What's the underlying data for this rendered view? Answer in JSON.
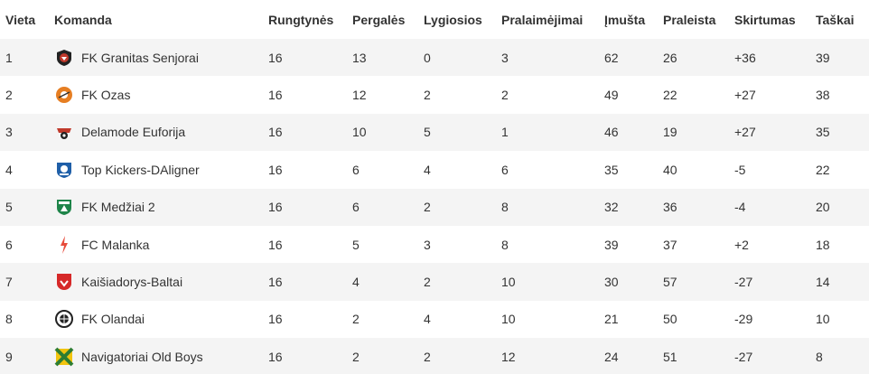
{
  "headers": [
    "Vieta",
    "Komanda",
    "Rungtynės",
    "Pergalės",
    "Lygiosios",
    "Pralaimėjimai",
    "Įmušta",
    "Praleista",
    "Skirtumas",
    "Taškai"
  ],
  "rows": [
    {
      "place": "1",
      "team": "FK Granitas Senjorai",
      "played": "16",
      "won": "13",
      "drawn": "0",
      "lost": "3",
      "scored": "62",
      "conceded": "26",
      "diff": "+36",
      "points": "39",
      "logo_icon": "granitas-logo-icon",
      "logo_color": "#c0392b"
    },
    {
      "place": "2",
      "team": "FK Ozas",
      "played": "16",
      "won": "12",
      "drawn": "2",
      "lost": "2",
      "scored": "49",
      "conceded": "22",
      "diff": "+27",
      "points": "38",
      "logo_icon": "ozas-logo-icon",
      "logo_color": "#e67e22"
    },
    {
      "place": "3",
      "team": "Delamode Euforija",
      "played": "16",
      "won": "10",
      "drawn": "5",
      "lost": "1",
      "scored": "46",
      "conceded": "19",
      "diff": "+27",
      "points": "35",
      "logo_icon": "euforija-logo-icon",
      "logo_color": "#c0392b"
    },
    {
      "place": "4",
      "team": "Top Kickers-DAligner",
      "played": "16",
      "won": "6",
      "drawn": "4",
      "lost": "6",
      "scored": "35",
      "conceded": "40",
      "diff": "-5",
      "points": "22",
      "logo_icon": "top-kickers-logo-icon",
      "logo_color": "#1f5fa8"
    },
    {
      "place": "5",
      "team": "FK Medžiai 2",
      "played": "16",
      "won": "6",
      "drawn": "2",
      "lost": "8",
      "scored": "32",
      "conceded": "36",
      "diff": "-4",
      "points": "20",
      "logo_icon": "medziai-logo-icon",
      "logo_color": "#1e8449"
    },
    {
      "place": "6",
      "team": "FC Malanka",
      "played": "16",
      "won": "5",
      "drawn": "3",
      "lost": "8",
      "scored": "39",
      "conceded": "37",
      "diff": "+2",
      "points": "18",
      "logo_icon": "malanka-logo-icon",
      "logo_color": "#e74c3c"
    },
    {
      "place": "7",
      "team": "Kaišiadorys-Baltai",
      "played": "16",
      "won": "4",
      "drawn": "2",
      "lost": "10",
      "scored": "30",
      "conceded": "57",
      "diff": "-27",
      "points": "14",
      "logo_icon": "kaisiadorys-logo-icon",
      "logo_color": "#d62828"
    },
    {
      "place": "8",
      "team": "FK Olandai",
      "played": "16",
      "won": "2",
      "drawn": "4",
      "lost": "10",
      "scored": "21",
      "conceded": "50",
      "diff": "-29",
      "points": "10",
      "logo_icon": "olandai-logo-icon",
      "logo_color": "#222222"
    },
    {
      "place": "9",
      "team": "Navigatoriai Old Boys",
      "played": "16",
      "won": "2",
      "drawn": "2",
      "lost": "12",
      "scored": "24",
      "conceded": "51",
      "diff": "-27",
      "points": "8",
      "logo_icon": "navigatoriai-logo-icon",
      "logo_color": "#2e7d32"
    }
  ],
  "colors": {
    "odd_row": "#f4f4f4",
    "even_row": "#ffffff",
    "text": "#333333"
  }
}
